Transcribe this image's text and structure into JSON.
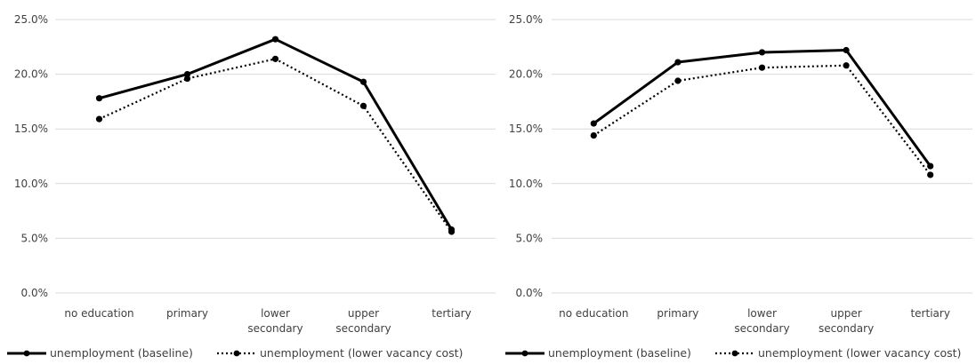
{
  "chart_data": [
    {
      "type": "line",
      "categories": [
        "no education",
        "primary",
        "lower secondary",
        "upper secondary",
        "tertiary"
      ],
      "category_lines": [
        [
          "no education"
        ],
        [
          "primary"
        ],
        [
          "lower",
          "secondary"
        ],
        [
          "upper",
          "secondary"
        ],
        [
          "tertiary"
        ]
      ],
      "ylim": [
        0,
        0.25
      ],
      "yticks": [
        0.0,
        0.05,
        0.1,
        0.15,
        0.2,
        0.25
      ],
      "ytick_labels": [
        "0.0%",
        "5.0%",
        "10.0%",
        "15.0%",
        "20.0%",
        "25.0%"
      ],
      "grid": true,
      "legend_position": "bottom",
      "series": [
        {
          "name": "unemployment (baseline)",
          "style": "solid",
          "color": "#000000",
          "values": [
            0.178,
            0.2,
            0.232,
            0.193,
            0.058
          ]
        },
        {
          "name": "unemployment (lower vacancy cost)",
          "style": "dotted",
          "color": "#000000",
          "values": [
            0.159,
            0.196,
            0.214,
            0.171,
            0.056
          ]
        }
      ]
    },
    {
      "type": "line",
      "categories": [
        "no education",
        "primary",
        "lower secondary",
        "upper secondary",
        "tertiary"
      ],
      "category_lines": [
        [
          "no education"
        ],
        [
          "primary"
        ],
        [
          "lower",
          "secondary"
        ],
        [
          "upper",
          "secondary"
        ],
        [
          "tertiary"
        ]
      ],
      "ylim": [
        0,
        0.25
      ],
      "yticks": [
        0.0,
        0.05,
        0.1,
        0.15,
        0.2,
        0.25
      ],
      "ytick_labels": [
        "0.0%",
        "5.0%",
        "10.0%",
        "15.0%",
        "20.0%",
        "25.0%"
      ],
      "grid": true,
      "legend_position": "bottom",
      "series": [
        {
          "name": "unemployment (baseline)",
          "style": "solid",
          "color": "#000000",
          "values": [
            0.155,
            0.211,
            0.22,
            0.222,
            0.116
          ]
        },
        {
          "name": "unemployment (lower vacancy cost)",
          "style": "dotted",
          "color": "#000000",
          "values": [
            0.144,
            0.194,
            0.206,
            0.208,
            0.108
          ]
        }
      ]
    }
  ]
}
